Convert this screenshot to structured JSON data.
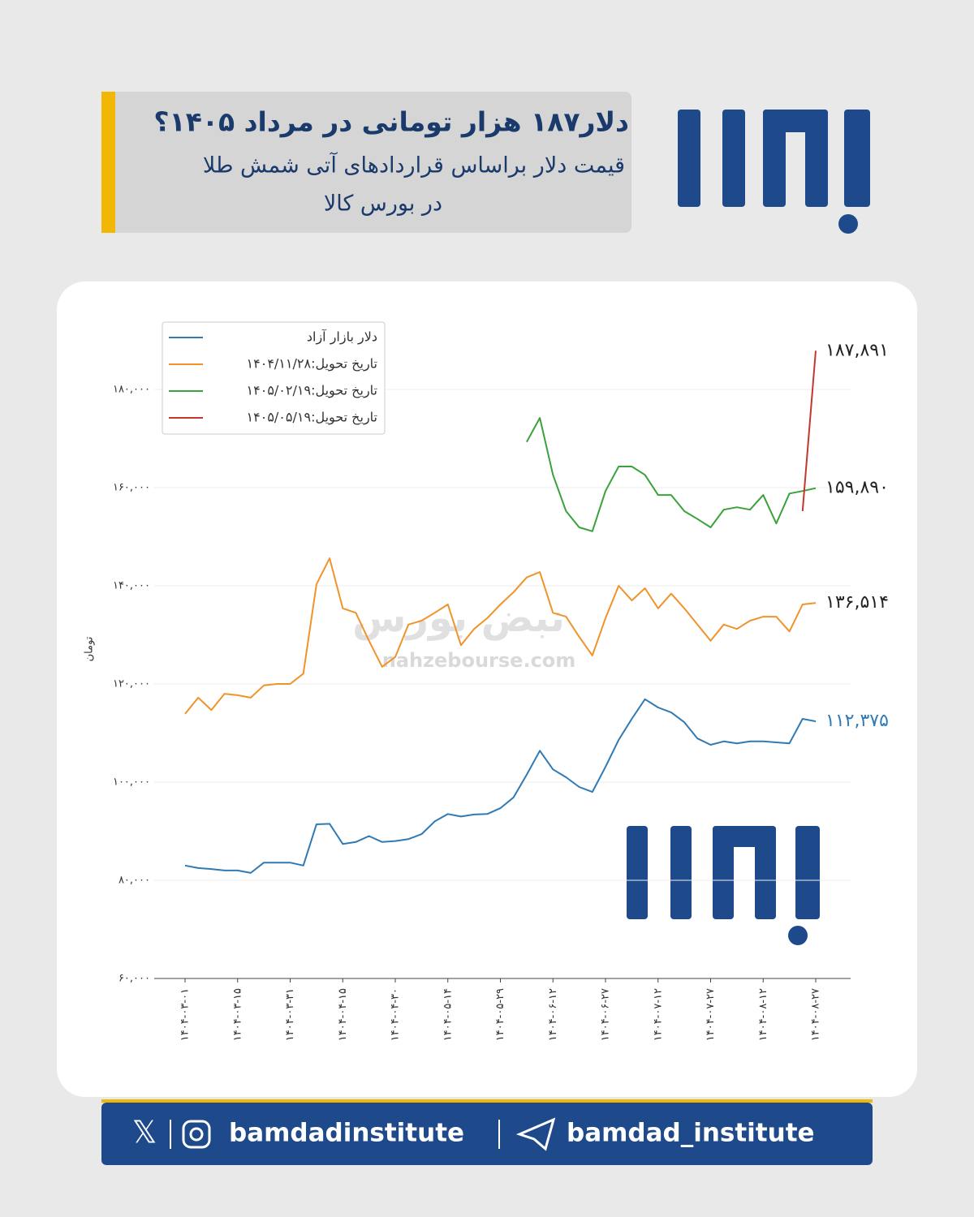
{
  "header": {
    "title": "دلار۱۸۷ هزار تومانی در مرداد ۱۴۰۵؟",
    "subtitle": [
      "قیمت دلار براساس قراردادهای آتی شمش طلا",
      "در بورس کالا"
    ]
  },
  "watermark": {
    "text": "نبض بورس",
    "url": "nahzebourse.com"
  },
  "footer": {
    "instagram": "bamdadinstitute",
    "telegram": "bamdad_institute"
  },
  "chart_data": {
    "type": "line",
    "y_label": "تومان",
    "grid": true,
    "legend": "upper-left",
    "ylim": [
      60000,
      180000
    ],
    "yticks": [
      {
        "value": 60000,
        "label": "۶۰,۰۰۰"
      },
      {
        "value": 80000,
        "label": "۸۰,۰۰۰"
      },
      {
        "value": 100000,
        "label": "۱۰۰,۰۰۰"
      },
      {
        "value": 120000,
        "label": "۱۲۰,۰۰۰"
      },
      {
        "value": 140000,
        "label": "۱۴۰,۰۰۰"
      },
      {
        "value": 160000,
        "label": "۱۶۰,۰۰۰"
      },
      {
        "value": 180000,
        "label": "۱۸۰,۰۰۰"
      }
    ],
    "categories": [
      "۱۴۰۴-۰۳-۰۱",
      null,
      null,
      null,
      "۱۴۰۴-۰۳-۱۵",
      null,
      null,
      null,
      "۱۴۰۴-۰۳-۳۱",
      null,
      null,
      null,
      "۱۴۰۴-۰۴-۱۵",
      null,
      null,
      null,
      "۱۴۰۴-۰۴-۳۰",
      null,
      null,
      null,
      "۱۴۰۴-۰۵-۱۴",
      null,
      null,
      null,
      "۱۴۰۴-۰۵-۲۹",
      null,
      null,
      null,
      "۱۴۰۴-۰۶-۱۲",
      null,
      null,
      null,
      "۱۴۰۴-۰۶-۲۷",
      null,
      null,
      null,
      "۱۴۰۴-۰۷-۱۲",
      null,
      null,
      null,
      "۱۴۰۴-۰۷-۲۷",
      null,
      null,
      null,
      "۱۴۰۴-۰۸-۱۲",
      null,
      null,
      null,
      "۱۴۰۴-۰۸-۲۷"
    ],
    "series": [
      {
        "name": "دلار بازار آزاد",
        "color": "#2f7ab5",
        "values": [
          83000,
          82500,
          82300,
          82000,
          82000,
          81500,
          83600,
          83600,
          83600,
          83000,
          91400,
          91500,
          87400,
          87800,
          89000,
          87800,
          88000,
          88400,
          89400,
          92000,
          93500,
          93000,
          93400,
          93500,
          94700,
          96900,
          101500,
          106400,
          102600,
          101000,
          99000,
          98000,
          103100,
          108600,
          112900,
          116900,
          115200,
          114200,
          112200,
          108900,
          107600,
          108300,
          107900,
          108300,
          108300,
          108100,
          107900,
          112900,
          112375
        ],
        "value_labels": [
          null,
          null,
          null,
          null,
          null,
          null,
          null,
          null,
          null,
          null,
          null,
          null,
          null,
          null,
          null,
          null,
          null,
          null,
          null,
          null,
          null,
          null,
          null,
          null,
          null,
          null,
          null,
          null,
          null,
          null,
          null,
          null,
          null,
          null,
          null,
          null,
          null,
          null,
          null,
          null,
          null,
          null,
          null,
          null,
          null,
          null,
          null,
          null,
          "۱۱۲,۳۷۵"
        ]
      },
      {
        "name": "تاریخ تحویل:۱۴۰۴/۱۱/۲۸",
        "color": "#f0932b",
        "values": [
          113900,
          117200,
          114700,
          118000,
          117700,
          117200,
          119700,
          120000,
          120000,
          122100,
          140300,
          145600,
          135400,
          134500,
          128800,
          123500,
          125500,
          132100,
          132900,
          134500,
          136200,
          127900,
          131200,
          133400,
          136200,
          138700,
          141700,
          142800,
          134500,
          133700,
          129600,
          125800,
          133400,
          140000,
          137000,
          139500,
          135400,
          138400,
          135400,
          132100,
          128800,
          132100,
          131200,
          132900,
          133700,
          133700,
          130700,
          136200,
          136514
        ],
        "value_labels": [
          null,
          null,
          null,
          null,
          null,
          null,
          null,
          null,
          null,
          null,
          null,
          null,
          null,
          null,
          null,
          null,
          null,
          null,
          null,
          null,
          null,
          null,
          null,
          null,
          null,
          null,
          null,
          null,
          null,
          null,
          null,
          null,
          null,
          null,
          null,
          null,
          null,
          null,
          null,
          null,
          null,
          null,
          null,
          null,
          null,
          null,
          null,
          null,
          "۱۳۶,۵۱۴"
        ]
      },
      {
        "name": "تاریخ تحویل:۱۴۰۵/۰۲/۱۹",
        "color": "#3aa23a",
        "values": [
          null,
          null,
          null,
          null,
          null,
          null,
          null,
          null,
          null,
          null,
          null,
          null,
          null,
          null,
          null,
          null,
          null,
          null,
          null,
          null,
          null,
          null,
          null,
          null,
          null,
          null,
          169300,
          174200,
          162600,
          155200,
          151900,
          151100,
          159300,
          164300,
          164300,
          162600,
          158500,
          158500,
          155200,
          153600,
          151900,
          155500,
          156000,
          155500,
          158500,
          152700,
          158800,
          159300,
          159890
        ],
        "value_labels": [
          null,
          null,
          null,
          null,
          null,
          null,
          null,
          null,
          null,
          null,
          null,
          null,
          null,
          null,
          null,
          null,
          null,
          null,
          null,
          null,
          null,
          null,
          null,
          null,
          null,
          null,
          null,
          null,
          null,
          null,
          null,
          null,
          null,
          null,
          null,
          null,
          null,
          null,
          null,
          null,
          null,
          null,
          null,
          null,
          null,
          null,
          null,
          null,
          "۱۵۹,۸۹۰"
        ]
      },
      {
        "name": "تاریخ تحویل:۱۴۰۵/۰۵/۱۹",
        "color": "#c0392b",
        "values": [
          null,
          null,
          null,
          null,
          null,
          null,
          null,
          null,
          null,
          null,
          null,
          null,
          null,
          null,
          null,
          null,
          null,
          null,
          null,
          null,
          null,
          null,
          null,
          null,
          null,
          null,
          null,
          null,
          null,
          null,
          null,
          null,
          null,
          null,
          null,
          null,
          null,
          null,
          null,
          null,
          null,
          null,
          null,
          null,
          null,
          null,
          null,
          155200,
          187891
        ],
        "value_labels": [
          null,
          null,
          null,
          null,
          null,
          null,
          null,
          null,
          null,
          null,
          null,
          null,
          null,
          null,
          null,
          null,
          null,
          null,
          null,
          null,
          null,
          null,
          null,
          null,
          null,
          null,
          null,
          null,
          null,
          null,
          null,
          null,
          null,
          null,
          null,
          null,
          null,
          null,
          null,
          null,
          null,
          null,
          null,
          null,
          null,
          null,
          null,
          null,
          "۱۸۷,۸۹۱"
        ]
      }
    ]
  }
}
